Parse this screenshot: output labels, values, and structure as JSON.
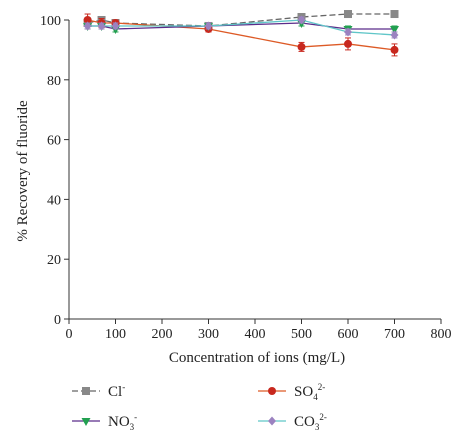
{
  "chart_data": {
    "type": "line",
    "xlabel": "Concentration of ions (mg/L)",
    "ylabel": "% Recovery of fluoride",
    "xlim": [
      0,
      800
    ],
    "ylim": [
      0,
      100
    ],
    "x_ticks": [
      0,
      100,
      200,
      300,
      400,
      500,
      600,
      700,
      800
    ],
    "y_ticks": [
      0,
      20,
      40,
      60,
      80,
      100
    ],
    "grid": false,
    "legend_position": "bottom",
    "series": [
      {
        "name_parts": {
          "base": "Cl",
          "sup": "-",
          "sub": "",
          "sup2": ""
        },
        "color": "#666666",
        "marker": "square",
        "dash": "6,3",
        "x": [
          40,
          70,
          100,
          300,
          500,
          600,
          700
        ],
        "y": [
          99,
          100,
          99,
          98,
          101,
          102,
          102
        ],
        "err": [
          1.0,
          1.0,
          1.0,
          1.0,
          1.0,
          1.0,
          1.0
        ]
      },
      {
        "name_parts": {
          "base": "SO",
          "sub": "4",
          "sup": "",
          "sup2": "2-"
        },
        "color": "#dd5a26",
        "marker": "circle",
        "dash": "",
        "x": [
          40,
          70,
          100,
          300,
          500,
          600,
          700
        ],
        "y": [
          100,
          99,
          99,
          97,
          91,
          92,
          90
        ],
        "err": [
          2.0,
          1.5,
          1.0,
          1.0,
          1.5,
          2.0,
          2.0
        ]
      },
      {
        "name_parts": {
          "base": "NO",
          "sub": "3",
          "sup": "",
          "sup2": "-"
        },
        "color": "#5b2c8a",
        "marker": "triangle-down",
        "dash": "",
        "x": [
          40,
          70,
          100,
          300,
          500,
          600,
          700
        ],
        "y": [
          98,
          98,
          97,
          98,
          99,
          97,
          97
        ],
        "err": [
          1.0,
          1.0,
          1.0,
          1.0,
          1.0,
          1.0,
          1.0
        ]
      },
      {
        "name_parts": {
          "base": "CO",
          "sub": "3",
          "sup": "",
          "sup2": "2-"
        },
        "color": "#5fc6c8",
        "marker": "diamond",
        "dash": "",
        "x": [
          40,
          70,
          100,
          300,
          500,
          600,
          700
        ],
        "y": [
          98,
          98,
          98,
          98,
          100,
          96,
          95
        ],
        "err": [
          1.0,
          1.0,
          1.0,
          1.0,
          1.0,
          1.0,
          1.0
        ]
      }
    ],
    "marker_colors": {
      "square": "#888888",
      "circle": "#c8281e",
      "triangle-down": "#22a050",
      "diamond": "#9b82c0"
    }
  }
}
